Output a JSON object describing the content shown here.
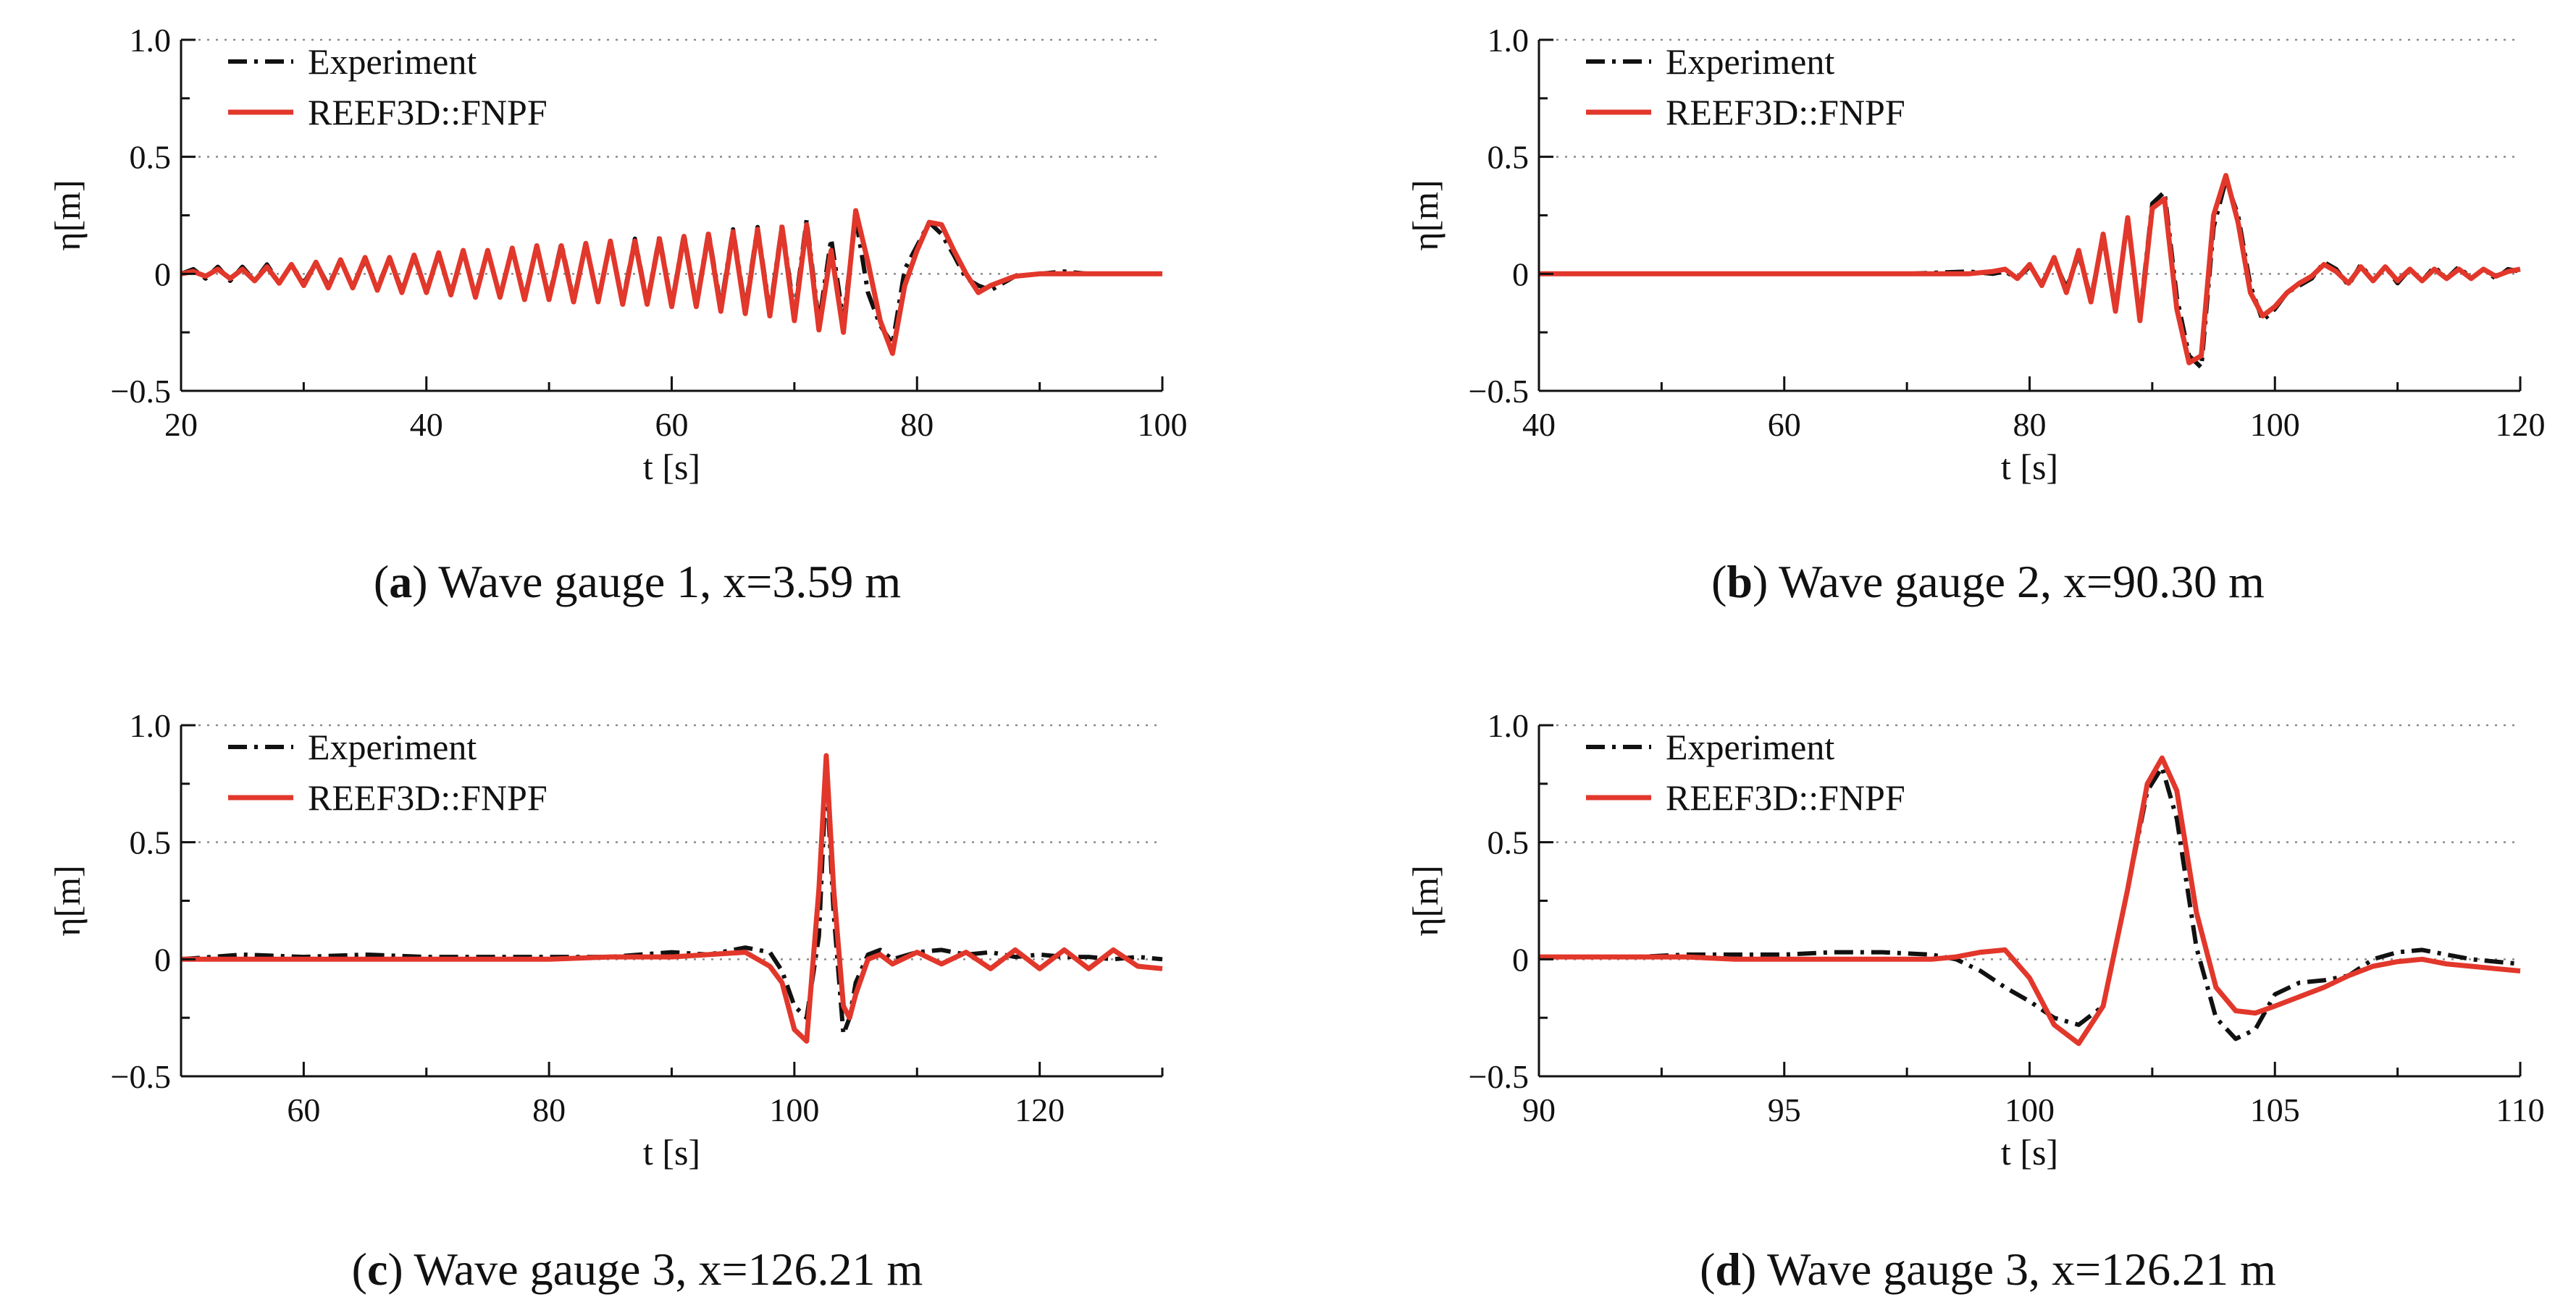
{
  "colors": {
    "experiment": "#111111",
    "reef3d": "#e2372b"
  },
  "chart_data": [
    {
      "type": "line",
      "caption_letter": "a",
      "caption_text": "Wave gauge 1, x=3.59  m",
      "xlabel": "t [s]",
      "ylabel": "η[m]",
      "xlim": [
        20,
        100
      ],
      "ylim": [
        -0.5,
        1.0
      ],
      "xticks": [
        20,
        40,
        60,
        80,
        100
      ],
      "yticks": [
        -0.5,
        0,
        0.5,
        1.0
      ],
      "ytick_labels": [
        "−0.5",
        "0",
        "0.5",
        "1.0"
      ],
      "grid": "horizontal dotted",
      "legend": [
        "Experiment",
        "REEF3D::FNPF"
      ],
      "legend_position": "top-left",
      "series": [
        {
          "name": "Experiment",
          "style": "dash-dot black",
          "x": [
            20,
            21,
            22,
            23,
            24,
            25,
            26,
            27,
            28,
            29,
            30,
            31,
            32,
            33,
            34,
            35,
            36,
            37,
            38,
            39,
            40,
            41,
            42,
            43,
            44,
            45,
            46,
            47,
            48,
            49,
            50,
            51,
            52,
            53,
            54,
            55,
            56,
            57,
            58,
            59,
            60,
            61,
            62,
            63,
            64,
            65,
            66,
            67,
            68,
            69,
            70,
            71,
            72,
            73,
            74,
            75,
            76,
            77,
            78,
            79,
            80,
            81,
            82,
            83,
            84,
            85,
            86,
            87,
            88,
            90,
            92,
            94,
            96,
            98,
            100
          ],
          "y": [
            0,
            0.02,
            -0.02,
            0.03,
            -0.03,
            0.03,
            -0.03,
            0.04,
            -0.04,
            0.04,
            -0.04,
            0.05,
            -0.05,
            0.06,
            -0.06,
            0.06,
            -0.06,
            0.07,
            -0.07,
            0.07,
            -0.07,
            0.08,
            -0.08,
            0.09,
            -0.09,
            0.1,
            -0.1,
            0.11,
            -0.1,
            0.12,
            -0.1,
            0.13,
            -0.11,
            0.13,
            -0.11,
            0.14,
            -0.12,
            0.15,
            -0.12,
            0.16,
            -0.13,
            0.17,
            -0.13,
            0.18,
            -0.14,
            0.19,
            -0.15,
            0.2,
            -0.16,
            0.21,
            -0.17,
            0.23,
            -0.21,
            0.15,
            -0.2,
            0.24,
            -0.08,
            -0.22,
            -0.3,
            0.02,
            0.12,
            0.22,
            0.17,
            0.08,
            -0.02,
            -0.05,
            -0.07,
            -0.04,
            -0.01,
            0,
            0.01,
            0,
            0,
            0,
            0
          ]
        },
        {
          "name": "REEF3D::FNPF",
          "style": "solid red",
          "x": [
            20,
            21,
            22,
            23,
            24,
            25,
            26,
            27,
            28,
            29,
            30,
            31,
            32,
            33,
            34,
            35,
            36,
            37,
            38,
            39,
            40,
            41,
            42,
            43,
            44,
            45,
            46,
            47,
            48,
            49,
            50,
            51,
            52,
            53,
            54,
            55,
            56,
            57,
            58,
            59,
            60,
            61,
            62,
            63,
            64,
            65,
            66,
            67,
            68,
            69,
            70,
            71,
            72,
            73,
            74,
            75,
            76,
            77,
            78,
            79,
            80,
            81,
            82,
            83,
            84,
            85,
            86,
            87,
            88,
            90,
            92,
            94,
            96,
            98,
            100
          ],
          "y": [
            0,
            0.01,
            -0.01,
            0.02,
            -0.02,
            0.02,
            -0.03,
            0.03,
            -0.04,
            0.04,
            -0.05,
            0.05,
            -0.06,
            0.06,
            -0.06,
            0.07,
            -0.07,
            0.07,
            -0.08,
            0.08,
            -0.08,
            0.09,
            -0.09,
            0.1,
            -0.1,
            0.1,
            -0.1,
            0.11,
            -0.11,
            0.12,
            -0.11,
            0.12,
            -0.12,
            0.13,
            -0.12,
            0.14,
            -0.13,
            0.14,
            -0.13,
            0.15,
            -0.14,
            0.16,
            -0.14,
            0.17,
            -0.16,
            0.18,
            -0.17,
            0.19,
            -0.18,
            0.2,
            -0.2,
            0.21,
            -0.24,
            0.1,
            -0.25,
            0.27,
            0.05,
            -0.2,
            -0.34,
            -0.05,
            0.1,
            0.22,
            0.21,
            0.1,
            0.0,
            -0.08,
            -0.05,
            -0.03,
            -0.01,
            0,
            0,
            0,
            0,
            0,
            0
          ]
        }
      ]
    },
    {
      "type": "line",
      "caption_letter": "b",
      "caption_text": "Wave gauge 2, x=90.30  m",
      "xlabel": "t [s]",
      "ylabel": "η[m]",
      "xlim": [
        40,
        120
      ],
      "ylim": [
        -0.5,
        1.0
      ],
      "xticks": [
        40,
        60,
        80,
        100,
        120
      ],
      "yticks": [
        -0.5,
        0,
        0.5,
        1.0
      ],
      "ytick_labels": [
        "−0.5",
        "0",
        "0.5",
        "1.0"
      ],
      "grid": "horizontal dotted",
      "legend": [
        "Experiment",
        "REEF3D::FNPF"
      ],
      "legend_position": "top-left",
      "series": [
        {
          "name": "Experiment",
          "style": "dash-dot black",
          "x": [
            40,
            50,
            60,
            70,
            75,
            77,
            78,
            79,
            80,
            81,
            82,
            83,
            84,
            85,
            86,
            87,
            88,
            89,
            90,
            91,
            92,
            93,
            94,
            95,
            96,
            97,
            98,
            99,
            100,
            101,
            102,
            103,
            104,
            105,
            106,
            107,
            108,
            109,
            110,
            111,
            112,
            113,
            114,
            115,
            116,
            117,
            118,
            119,
            120
          ],
          "y": [
            0,
            0,
            0,
            0,
            0.01,
            0.0,
            0.01,
            -0.02,
            0.03,
            -0.04,
            0.06,
            -0.06,
            0.08,
            -0.1,
            0.15,
            -0.14,
            0.22,
            -0.18,
            0.3,
            0.35,
            -0.1,
            -0.35,
            -0.4,
            0.2,
            0.4,
            0.25,
            -0.05,
            -0.2,
            -0.15,
            -0.08,
            -0.05,
            -0.02,
            0.05,
            0.02,
            -0.05,
            0.04,
            -0.03,
            0.03,
            -0.04,
            0.02,
            -0.03,
            0.03,
            -0.02,
            0.03,
            -0.02,
            0.02,
            -0.02,
            0.02,
            0.01
          ]
        },
        {
          "name": "REEF3D::FNPF",
          "style": "solid red",
          "x": [
            40,
            50,
            60,
            70,
            75,
            77,
            78,
            79,
            80,
            81,
            82,
            83,
            84,
            85,
            86,
            87,
            88,
            89,
            90,
            91,
            92,
            93,
            94,
            95,
            96,
            97,
            98,
            99,
            100,
            101,
            102,
            103,
            104,
            105,
            106,
            107,
            108,
            109,
            110,
            111,
            112,
            113,
            114,
            115,
            116,
            117,
            118,
            119,
            120
          ],
          "y": [
            0,
            0,
            0,
            0,
            0,
            0.01,
            0.02,
            -0.02,
            0.04,
            -0.05,
            0.07,
            -0.08,
            0.1,
            -0.12,
            0.17,
            -0.16,
            0.24,
            -0.2,
            0.28,
            0.32,
            -0.15,
            -0.38,
            -0.35,
            0.25,
            0.42,
            0.22,
            -0.08,
            -0.18,
            -0.14,
            -0.08,
            -0.04,
            -0.01,
            0.04,
            0.01,
            -0.04,
            0.03,
            -0.03,
            0.03,
            -0.03,
            0.02,
            -0.03,
            0.02,
            -0.02,
            0.02,
            -0.02,
            0.02,
            -0.01,
            0.01,
            0.02
          ]
        }
      ]
    },
    {
      "type": "line",
      "caption_letter": "c",
      "caption_text": "Wave gauge 3, x=126.21  m",
      "xlabel": "t [s]",
      "ylabel": "η[m]",
      "xlim": [
        50,
        130
      ],
      "ylim": [
        -0.5,
        1.0
      ],
      "xticks": [
        60,
        80,
        100,
        120
      ],
      "yticks": [
        -0.5,
        0,
        0.5,
        1.0
      ],
      "ytick_labels": [
        "−0.5",
        "0",
        "0.5",
        "1.0"
      ],
      "grid": "horizontal dotted",
      "legend": [
        "Experiment",
        "REEF3D::FNPF"
      ],
      "legend_position": "top-left",
      "series": [
        {
          "name": "Experiment",
          "style": "dash-dot black",
          "x": [
            50,
            55,
            60,
            65,
            70,
            75,
            80,
            85,
            90,
            93,
            96,
            98,
            99,
            100,
            101,
            102,
            102.6,
            103.2,
            104,
            104.5,
            105,
            106,
            107,
            108,
            110,
            112,
            114,
            116,
            118,
            120,
            122,
            124,
            126,
            128,
            130
          ],
          "y": [
            0,
            0.02,
            0.01,
            0.02,
            0.01,
            0.01,
            0.01,
            0.01,
            0.03,
            0.02,
            0.05,
            0.03,
            -0.05,
            -0.2,
            -0.25,
            0.1,
            0.8,
            0.2,
            -0.32,
            -0.25,
            -0.1,
            0.02,
            0.04,
            0.0,
            0.03,
            0.04,
            0.02,
            0.03,
            0.01,
            0.02,
            0.01,
            0.01,
            0.0,
            0.01,
            0.0
          ]
        },
        {
          "name": "REEF3D::FNPF",
          "style": "solid red",
          "x": [
            50,
            55,
            60,
            65,
            70,
            75,
            80,
            85,
            90,
            93,
            96,
            98,
            99,
            100,
            101,
            102,
            102.6,
            103.2,
            104,
            104.5,
            105,
            106,
            107,
            108,
            110,
            112,
            114,
            116,
            118,
            120,
            122,
            124,
            126,
            128,
            130
          ],
          "y": [
            0,
            0,
            0,
            0,
            0,
            0,
            0,
            0.01,
            0.01,
            0.02,
            0.03,
            -0.03,
            -0.1,
            -0.3,
            -0.35,
            0.3,
            0.87,
            0.3,
            -0.2,
            -0.25,
            -0.15,
            0.0,
            0.02,
            -0.02,
            0.03,
            -0.02,
            0.03,
            -0.04,
            0.04,
            -0.04,
            0.04,
            -0.04,
            0.04,
            -0.03,
            -0.04
          ]
        }
      ]
    },
    {
      "type": "line",
      "caption_letter": "d",
      "caption_text": "Wave gauge 3, x=126.21  m",
      "xlabel": "t [s]",
      "ylabel": "η[m]",
      "xlim": [
        90,
        110
      ],
      "ylim": [
        -0.5,
        1.0
      ],
      "xticks": [
        90,
        95,
        100,
        105,
        110
      ],
      "yticks": [
        -0.5,
        0,
        0.5,
        1.0
      ],
      "ytick_labels": [
        "−0.5",
        "0",
        "0.5",
        "1.0"
      ],
      "grid": "horizontal dotted",
      "legend": [
        "Experiment",
        "REEF3D::FNPF"
      ],
      "legend_position": "top-left",
      "series": [
        {
          "name": "Experiment",
          "style": "dash-dot black",
          "x": [
            90,
            91,
            92,
            93,
            94,
            95,
            96,
            97,
            98,
            98.5,
            99,
            99.5,
            100,
            100.5,
            101,
            101.5,
            102,
            102.4,
            102.7,
            103,
            103.4,
            103.8,
            104.2,
            104.6,
            105,
            105.5,
            106,
            106.5,
            107,
            107.5,
            108,
            108.5,
            109,
            109.5,
            110
          ],
          "y": [
            0.01,
            0.01,
            0.01,
            0.02,
            0.02,
            0.02,
            0.03,
            0.03,
            0.02,
            0.0,
            -0.05,
            -0.12,
            -0.18,
            -0.25,
            -0.28,
            -0.2,
            0.3,
            0.72,
            0.82,
            0.6,
            0.05,
            -0.25,
            -0.34,
            -0.3,
            -0.15,
            -0.1,
            -0.09,
            -0.07,
            0.0,
            0.03,
            0.04,
            0.02,
            0.0,
            -0.01,
            -0.02
          ]
        },
        {
          "name": "REEF3D::FNPF",
          "style": "solid red",
          "x": [
            90,
            91,
            92,
            93,
            94,
            95,
            96,
            97,
            98,
            98.5,
            99,
            99.5,
            100,
            100.5,
            101,
            101.5,
            102,
            102.4,
            102.7,
            103,
            103.4,
            103.8,
            104.2,
            104.6,
            105,
            105.5,
            106,
            106.5,
            107,
            107.5,
            108,
            108.5,
            109,
            109.5,
            110
          ],
          "y": [
            0.01,
            0.01,
            0.01,
            0.01,
            0.0,
            0.0,
            0.0,
            0.0,
            0.0,
            0.01,
            0.03,
            0.04,
            -0.08,
            -0.28,
            -0.36,
            -0.2,
            0.3,
            0.75,
            0.86,
            0.72,
            0.2,
            -0.12,
            -0.22,
            -0.23,
            -0.2,
            -0.16,
            -0.12,
            -0.07,
            -0.03,
            -0.01,
            0.0,
            -0.02,
            -0.03,
            -0.04,
            -0.05
          ]
        }
      ]
    }
  ]
}
